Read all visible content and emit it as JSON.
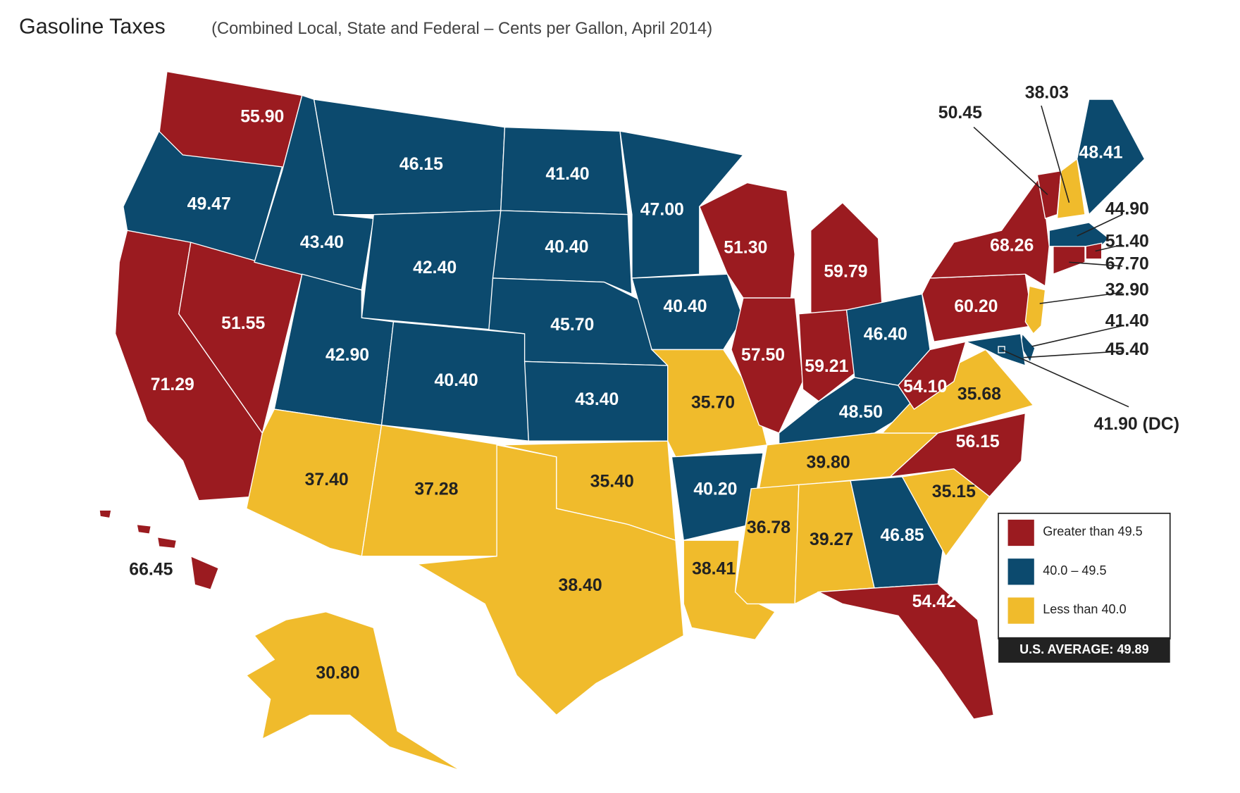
{
  "chart_data": {
    "type": "choropleth",
    "title": "Gasoline Taxes",
    "subtitle": "(Combined Local, State and Federal – Cents per Gallon, April 2014)",
    "values": [
      55.9,
      49.47,
      71.29,
      51.55,
      43.4,
      46.15,
      42.4,
      42.9,
      40.4,
      37.4,
      37.28,
      41.4,
      40.4,
      45.7,
      43.4,
      35.4,
      38.4,
      47.0,
      40.4,
      35.7,
      40.2,
      38.41,
      51.3,
      57.5,
      59.79,
      59.21,
      46.4,
      48.5,
      39.8,
      36.78,
      39.27,
      46.85,
      54.42,
      35.15,
      56.15,
      35.68,
      54.1,
      60.2,
      68.26,
      50.45,
      38.03,
      48.41,
      44.9,
      51.4,
      67.7,
      32.9,
      41.4,
      45.4,
      41.9,
      30.8,
      66.45
    ],
    "value_labels": [
      "55.90",
      "49.47",
      "71.29",
      "51.55",
      "43.40",
      "46.15",
      "42.40",
      "42.90",
      "40.40",
      "37.40",
      "37.28",
      "41.40",
      "40.40",
      "45.70",
      "43.40",
      "35.40",
      "38.40",
      "47.00",
      "40.40",
      "35.70",
      "40.20",
      "38.41",
      "51.30",
      "57.50",
      "59.79",
      "59.21",
      "46.40",
      "48.50",
      "39.80",
      "36.78",
      "39.27",
      "46.85",
      "54.42",
      "35.15",
      "56.15",
      "35.68",
      "54.10",
      "60.20",
      "68.26",
      "50.45",
      "38.03",
      "48.41",
      "44.90",
      "51.40",
      "67.70",
      "32.90",
      "41.40",
      "45.40",
      "41.90 (DC)",
      "30.80",
      "66.45"
    ],
    "breaks": [
      40.0,
      49.5
    ],
    "legend": [
      {
        "label": "Greater than 49.5",
        "color": "#9b1b20"
      },
      {
        "label": "40.0 – 49.5",
        "color": "#0c4a6e"
      },
      {
        "label": "Less than 40.0",
        "color": "#f0bb2c"
      }
    ],
    "average_label": "U.S. AVERAGE:",
    "average": 49.89
  }
}
